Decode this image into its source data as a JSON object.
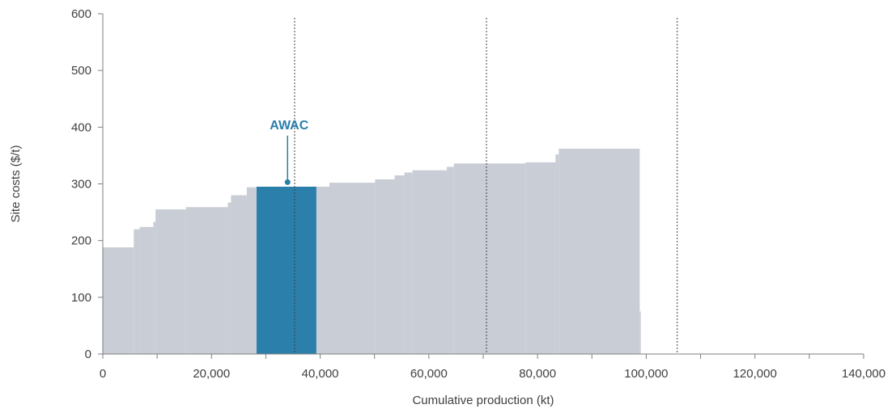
{
  "chart_data": {
    "type": "area",
    "xlabel": "Cumulative production (kt)",
    "ylabel": "Site costs ($/t)",
    "xlim": [
      0,
      140000
    ],
    "ylim": [
      0,
      600
    ],
    "xticks": [
      0,
      20000,
      40000,
      60000,
      80000,
      100000,
      120000,
      140000
    ],
    "xtick_labels": [
      "0",
      "20,000",
      "40,000",
      "60,000",
      "80,000",
      "100,000",
      "120,000",
      "140,000"
    ],
    "yticks": [
      0,
      100,
      200,
      300,
      400,
      500,
      600
    ],
    "ytick_labels": [
      "0",
      "100",
      "200",
      "300",
      "400",
      "500",
      "600"
    ],
    "grid": false,
    "colors": {
      "curve": "#c9cdd5",
      "highlight": "#2a7fab",
      "axis": "#7f7f7f",
      "reference_line": "#404040"
    },
    "steps": [
      {
        "x0": 0,
        "x1": 5700,
        "y": 188
      },
      {
        "x0": 5700,
        "x1": 6800,
        "y": 220
      },
      {
        "x0": 6800,
        "x1": 9300,
        "y": 224
      },
      {
        "x0": 9300,
        "x1": 9700,
        "y": 233
      },
      {
        "x0": 9700,
        "x1": 15300,
        "y": 255
      },
      {
        "x0": 15300,
        "x1": 23000,
        "y": 259
      },
      {
        "x0": 23000,
        "x1": 23600,
        "y": 267
      },
      {
        "x0": 23600,
        "x1": 26500,
        "y": 280
      },
      {
        "x0": 26500,
        "x1": 28300,
        "y": 294
      },
      {
        "x0": 28300,
        "x1": 39300,
        "y": 295
      },
      {
        "x0": 39300,
        "x1": 41700,
        "y": 295
      },
      {
        "x0": 41700,
        "x1": 50100,
        "y": 302
      },
      {
        "x0": 50100,
        "x1": 53700,
        "y": 308
      },
      {
        "x0": 53700,
        "x1": 55500,
        "y": 315
      },
      {
        "x0": 55500,
        "x1": 57000,
        "y": 320
      },
      {
        "x0": 57000,
        "x1": 63300,
        "y": 324
      },
      {
        "x0": 63300,
        "x1": 64600,
        "y": 330
      },
      {
        "x0": 64600,
        "x1": 77800,
        "y": 336
      },
      {
        "x0": 77800,
        "x1": 83300,
        "y": 338
      },
      {
        "x0": 83300,
        "x1": 83900,
        "y": 352
      },
      {
        "x0": 83900,
        "x1": 98800,
        "y": 362
      },
      {
        "x0": 98800,
        "x1": 99000,
        "y": 75
      }
    ],
    "highlight": {
      "name": "AWAC",
      "x0": 28300,
      "x1": 39300,
      "y": 295
    },
    "reference_lines_x": [
      35300,
      70600,
      105700
    ],
    "annotations": [
      {
        "text": "AWAC",
        "x": 34000,
        "y": 405,
        "point": {
          "x": 34000,
          "y": 303
        }
      }
    ]
  }
}
